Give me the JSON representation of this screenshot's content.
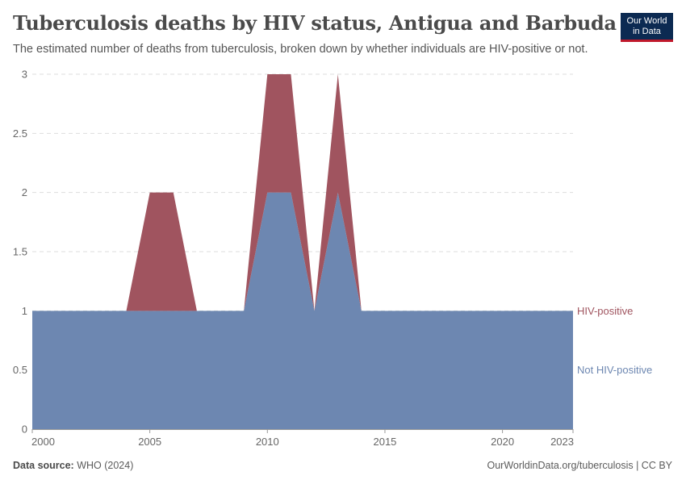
{
  "header": {
    "title": "Tuberculosis deaths by HIV status, Antigua and Barbuda",
    "subtitle": "The estimated number of deaths from tuberculosis, broken down by whether individuals are HIV-positive or not."
  },
  "logo": {
    "line1": "Our World",
    "line2": "in Data"
  },
  "footer": {
    "source_label": "Data source:",
    "source_value": "WHO (2024)",
    "link_text": "OurWorldinData.org/tuberculosis | CC BY"
  },
  "chart_data": {
    "type": "area",
    "stacked": true,
    "x": [
      2000,
      2001,
      2002,
      2003,
      2004,
      2005,
      2006,
      2007,
      2008,
      2009,
      2010,
      2011,
      2012,
      2013,
      2014,
      2015,
      2016,
      2017,
      2018,
      2019,
      2020,
      2021,
      2022,
      2023
    ],
    "series": [
      {
        "name": "Not HIV-positive",
        "color": "#6d87b1",
        "values": [
          1,
          1,
          1,
          1,
          1,
          1,
          1,
          1,
          1,
          1,
          2,
          2,
          1,
          2,
          1,
          1,
          1,
          1,
          1,
          1,
          1,
          1,
          1,
          1
        ]
      },
      {
        "name": "HIV-positive",
        "color": "#a0545f",
        "values": [
          0,
          0,
          0,
          0,
          0,
          1,
          1,
          0,
          0,
          0,
          1,
          1,
          0,
          1,
          0,
          0,
          0,
          0,
          0,
          0,
          0,
          0,
          0,
          0
        ]
      }
    ],
    "xticks": [
      "2000",
      "2005",
      "2010",
      "2015",
      "2020",
      "2023"
    ],
    "yticks": [
      "0",
      "0.5",
      "1",
      "1.5",
      "2",
      "2.5",
      "3"
    ],
    "ylim": [
      0,
      3
    ],
    "xlim": [
      2000,
      2023
    ],
    "grid": "horizontal dashed",
    "legend": "right, inline labels"
  }
}
